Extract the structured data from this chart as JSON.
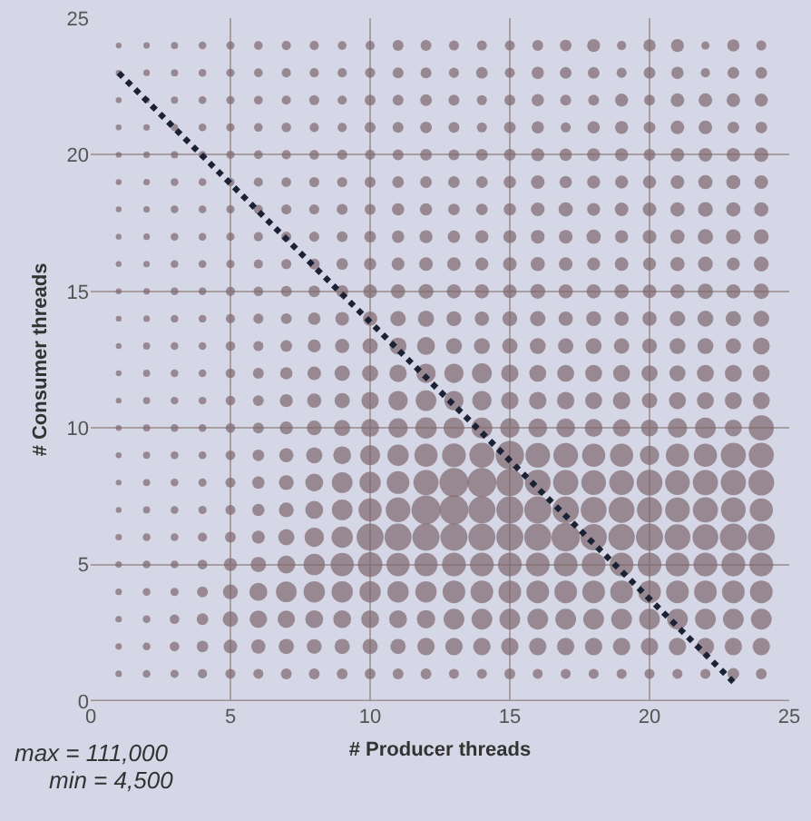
{
  "chart_data": {
    "type": "bubble",
    "xlabel": "# Producer threads",
    "ylabel": "# Consumer threads",
    "xlim": [
      0,
      25
    ],
    "ylim": [
      0,
      25
    ],
    "xticks": [
      0,
      5,
      10,
      15,
      20,
      25
    ],
    "yticks": [
      0,
      5,
      10,
      15,
      20,
      25
    ],
    "grid": true,
    "annotations": [
      "max = 111,000",
      "min = 4,500"
    ],
    "series": [
      {
        "color": "#7d666c",
        "x": [
          1,
          2,
          3,
          4,
          5,
          6,
          7,
          8,
          9,
          10,
          11,
          12,
          13,
          14,
          15,
          16,
          17,
          18,
          19,
          20,
          21,
          22,
          23,
          24
        ],
        "values": [
          1,
          1,
          1,
          1,
          1,
          1,
          1,
          1,
          1,
          1,
          1,
          1,
          1,
          1,
          1,
          1,
          1,
          1,
          1,
          1,
          1,
          1,
          1,
          1
        ],
        "sizes": [
          0.05,
          0.07,
          0.08,
          0.1,
          0.12,
          0.12,
          0.14,
          0.14,
          0.14,
          0.14,
          0.14,
          0.14,
          0.12,
          0.12,
          0.14,
          0.12,
          0.12,
          0.12,
          0.12,
          0.12,
          0.12,
          0.12,
          0.16,
          0.14
        ]
      },
      {
        "color": "#7d666c",
        "x": [
          1,
          2,
          3,
          4,
          5,
          6,
          7,
          8,
          9,
          10,
          11,
          12,
          13,
          14,
          15,
          16,
          17,
          18,
          19,
          20,
          21,
          22,
          23,
          24
        ],
        "values": [
          2,
          2,
          2,
          2,
          2,
          2,
          2,
          2,
          2,
          2,
          2,
          2,
          2,
          2,
          2,
          2,
          2,
          2,
          2,
          2,
          2,
          2,
          2,
          2
        ],
        "sizes": [
          0.05,
          0.07,
          0.11,
          0.16,
          0.22,
          0.24,
          0.28,
          0.26,
          0.28,
          0.28,
          0.28,
          0.36,
          0.36,
          0.36,
          0.36,
          0.36,
          0.36,
          0.36,
          0.36,
          0.36,
          0.36,
          0.36,
          0.36,
          0.36
        ]
      },
      {
        "color": "#7d666c",
        "x": [
          1,
          2,
          3,
          4,
          5,
          6,
          7,
          8,
          9,
          10,
          11,
          12,
          13,
          14,
          15,
          16,
          17,
          18,
          19,
          20,
          21,
          22,
          23,
          24
        ],
        "values": [
          3,
          3,
          3,
          3,
          3,
          3,
          3,
          3,
          3,
          3,
          3,
          3,
          3,
          3,
          3,
          3,
          3,
          3,
          3,
          3,
          3,
          3,
          3,
          3
        ],
        "sizes": [
          0.05,
          0.07,
          0.11,
          0.16,
          0.28,
          0.36,
          0.36,
          0.38,
          0.38,
          0.38,
          0.38,
          0.4,
          0.51,
          0.51,
          0.51,
          0.51,
          0.51,
          0.51,
          0.51,
          0.51,
          0.51,
          0.51,
          0.51,
          0.51
        ]
      },
      {
        "color": "#7d666c",
        "x": [
          1,
          2,
          3,
          4,
          5,
          6,
          7,
          8,
          9,
          10,
          11,
          12,
          13,
          14,
          15,
          16,
          17,
          18,
          19,
          20,
          21,
          22,
          23,
          24
        ],
        "values": [
          4,
          4,
          4,
          4,
          4,
          4,
          4,
          4,
          4,
          4,
          4,
          4,
          4,
          4,
          4,
          4,
          4,
          4,
          4,
          4,
          4,
          4,
          4,
          4
        ],
        "sizes": [
          0.05,
          0.07,
          0.08,
          0.14,
          0.26,
          0.38,
          0.51,
          0.54,
          0.54,
          0.54,
          0.54,
          0.54,
          0.61,
          0.61,
          0.61,
          0.61,
          0.61,
          0.61,
          0.61,
          0.61,
          0.61,
          0.61,
          0.61,
          0.61
        ]
      },
      {
        "color": "#7d666c",
        "x": [
          1,
          2,
          3,
          4,
          5,
          6,
          7,
          8,
          9,
          10,
          11,
          12,
          13,
          14,
          15,
          16,
          17,
          18,
          19,
          20,
          21,
          22,
          23,
          24
        ],
        "values": [
          5,
          5,
          5,
          5,
          5,
          5,
          5,
          5,
          5,
          5,
          5,
          5,
          5,
          5,
          5,
          5,
          5,
          5,
          5,
          5,
          5,
          5,
          5,
          5
        ],
        "sizes": [
          0.05,
          0.07,
          0.07,
          0.11,
          0.2,
          0.28,
          0.38,
          0.54,
          0.64,
          0.72,
          0.64,
          0.64,
          0.67,
          0.67,
          0.67,
          0.67,
          0.67,
          0.67,
          0.67,
          0.67,
          0.67,
          0.67,
          0.67,
          0.67
        ]
      },
      {
        "color": "#7d666c",
        "x": [
          1,
          2,
          3,
          4,
          5,
          6,
          7,
          8,
          9,
          10,
          11,
          12,
          13,
          14,
          15,
          16,
          17,
          18,
          19,
          20,
          21,
          22,
          23,
          24
        ],
        "values": [
          6,
          6,
          6,
          6,
          6,
          6,
          6,
          6,
          6,
          6,
          6,
          6,
          6,
          6,
          6,
          6,
          6,
          6,
          6,
          6,
          6,
          6,
          6,
          6
        ],
        "sizes": [
          0.05,
          0.07,
          0.07,
          0.1,
          0.14,
          0.2,
          0.31,
          0.44,
          0.54,
          0.87,
          0.87,
          0.87,
          0.87,
          0.87,
          0.87,
          0.87,
          0.96,
          0.83,
          0.83,
          0.87,
          0.79,
          0.79,
          0.87,
          0.87
        ]
      },
      {
        "color": "#7d666c",
        "x": [
          1,
          2,
          3,
          4,
          5,
          6,
          7,
          8,
          9,
          10,
          11,
          12,
          13,
          14,
          15,
          16,
          17,
          18,
          19,
          20,
          21,
          22,
          23,
          24
        ],
        "values": [
          7,
          7,
          7,
          7,
          7,
          7,
          7,
          7,
          7,
          7,
          7,
          7,
          7,
          7,
          7,
          7,
          7,
          7,
          7,
          7,
          7,
          7,
          7,
          7
        ],
        "sizes": [
          0.04,
          0.06,
          0.07,
          0.08,
          0.12,
          0.18,
          0.26,
          0.38,
          0.51,
          0.64,
          0.72,
          1.0,
          1.0,
          0.87,
          0.87,
          0.87,
          0.83,
          0.79,
          0.79,
          0.75,
          0.72,
          0.75,
          0.72,
          0.64
        ]
      },
      {
        "color": "#7d666c",
        "x": [
          1,
          2,
          3,
          4,
          5,
          6,
          7,
          8,
          9,
          10,
          11,
          12,
          13,
          14,
          15,
          16,
          17,
          18,
          19,
          20,
          21,
          22,
          23,
          24
        ],
        "values": [
          8,
          8,
          8,
          8,
          8,
          8,
          8,
          8,
          8,
          8,
          8,
          8,
          8,
          8,
          8,
          8,
          8,
          8,
          8,
          8,
          8,
          8,
          8,
          8
        ],
        "sizes": [
          0.04,
          0.06,
          0.07,
          0.08,
          0.12,
          0.18,
          0.26,
          0.38,
          0.51,
          0.54,
          0.61,
          0.75,
          1.0,
          1.0,
          0.87,
          0.79,
          0.75,
          0.72,
          0.72,
          0.79,
          0.72,
          0.75,
          0.75,
          0.79
        ]
      },
      {
        "color": "#7d666c",
        "x": [
          1,
          2,
          3,
          4,
          5,
          6,
          7,
          8,
          9,
          10,
          11,
          12,
          13,
          14,
          15,
          16,
          17,
          18,
          19,
          20,
          21,
          22,
          23,
          24
        ],
        "values": [
          9,
          9,
          9,
          9,
          9,
          9,
          9,
          9,
          9,
          9,
          9,
          9,
          9,
          9,
          9,
          9,
          9,
          9,
          9,
          9,
          9,
          9,
          9,
          9
        ],
        "sizes": [
          0.04,
          0.06,
          0.07,
          0.07,
          0.11,
          0.16,
          0.24,
          0.31,
          0.38,
          0.47,
          0.54,
          0.64,
          0.67,
          0.75,
          0.96,
          0.72,
          0.72,
          0.64,
          0.64,
          0.44,
          0.64,
          0.64,
          0.75,
          0.75
        ]
      },
      {
        "color": "#7d666c",
        "x": [
          1,
          2,
          3,
          4,
          5,
          6,
          7,
          8,
          9,
          10,
          11,
          12,
          13,
          14,
          15,
          16,
          17,
          18,
          19,
          20,
          21,
          22,
          23,
          24
        ],
        "values": [
          10,
          10,
          10,
          10,
          10,
          10,
          10,
          10,
          10,
          10,
          10,
          10,
          10,
          10,
          10,
          10,
          10,
          10,
          10,
          10,
          10,
          10,
          10,
          10
        ],
        "sizes": [
          0.04,
          0.06,
          0.07,
          0.07,
          0.11,
          0.14,
          0.2,
          0.26,
          0.31,
          0.38,
          0.44,
          0.54,
          0.51,
          0.51,
          0.44,
          0.42,
          0.42,
          0.38,
          0.36,
          0.34,
          0.44,
          0.51,
          0.34,
          0.75
        ]
      },
      {
        "color": "#7d666c",
        "x": [
          1,
          2,
          3,
          4,
          5,
          6,
          7,
          8,
          9,
          10,
          11,
          12,
          13,
          14,
          15,
          16,
          17,
          18,
          19,
          20,
          21,
          22,
          23,
          24
        ],
        "values": [
          11,
          11,
          11,
          11,
          11,
          11,
          11,
          11,
          11,
          11,
          11,
          11,
          11,
          11,
          11,
          11,
          11,
          11,
          11,
          11,
          11,
          11,
          11,
          11
        ],
        "sizes": [
          0.04,
          0.06,
          0.07,
          0.07,
          0.11,
          0.14,
          0.2,
          0.24,
          0.28,
          0.36,
          0.44,
          0.51,
          0.44,
          0.44,
          0.36,
          0.36,
          0.36,
          0.34,
          0.36,
          0.28,
          0.34,
          0.34,
          0.34,
          0.34
        ]
      },
      {
        "color": "#7d666c",
        "x": [
          1,
          2,
          3,
          4,
          5,
          6,
          7,
          8,
          9,
          10,
          11,
          12,
          13,
          14,
          15,
          16,
          17,
          18,
          19,
          20,
          21,
          22,
          23,
          24
        ],
        "values": [
          12,
          12,
          12,
          12,
          12,
          12,
          12,
          12,
          12,
          12,
          12,
          12,
          12,
          12,
          12,
          12,
          12,
          12,
          12,
          12,
          12,
          12,
          12,
          12
        ],
        "sizes": [
          0.04,
          0.06,
          0.07,
          0.07,
          0.11,
          0.14,
          0.18,
          0.22,
          0.28,
          0.31,
          0.36,
          0.44,
          0.44,
          0.47,
          0.36,
          0.34,
          0.34,
          0.34,
          0.34,
          0.31,
          0.31,
          0.34,
          0.34,
          0.34
        ]
      },
      {
        "color": "#7d666c",
        "x": [
          1,
          2,
          3,
          4,
          5,
          6,
          7,
          8,
          9,
          10,
          11,
          12,
          13,
          14,
          15,
          16,
          17,
          18,
          19,
          20,
          21,
          22,
          23,
          24
        ],
        "values": [
          13,
          13,
          13,
          13,
          13,
          13,
          13,
          13,
          13,
          13,
          13,
          13,
          13,
          13,
          13,
          13,
          13,
          13,
          13,
          13,
          13,
          13,
          13,
          13
        ],
        "sizes": [
          0.04,
          0.06,
          0.07,
          0.07,
          0.11,
          0.12,
          0.16,
          0.2,
          0.24,
          0.28,
          0.34,
          0.38,
          0.3,
          0.3,
          0.28,
          0.3,
          0.28,
          0.3,
          0.28,
          0.26,
          0.3,
          0.3,
          0.28,
          0.34
        ]
      },
      {
        "color": "#7d666c",
        "x": [
          1,
          2,
          3,
          4,
          5,
          6,
          7,
          8,
          9,
          10,
          11,
          12,
          13,
          14,
          15,
          16,
          17,
          18,
          19,
          20,
          21,
          22,
          23,
          24
        ],
        "values": [
          14,
          14,
          14,
          14,
          14,
          14,
          14,
          14,
          14,
          14,
          14,
          14,
          14,
          14,
          14,
          14,
          14,
          14,
          14,
          14,
          14,
          14,
          14,
          14
        ],
        "sizes": [
          0.04,
          0.05,
          0.07,
          0.07,
          0.1,
          0.12,
          0.14,
          0.18,
          0.22,
          0.24,
          0.28,
          0.31,
          0.26,
          0.24,
          0.26,
          0.28,
          0.24,
          0.26,
          0.24,
          0.24,
          0.28,
          0.3,
          0.28,
          0.3
        ]
      },
      {
        "color": "#7d666c",
        "x": [
          1,
          2,
          3,
          4,
          5,
          6,
          7,
          8,
          9,
          10,
          11,
          12,
          13,
          14,
          15,
          16,
          17,
          18,
          19,
          20,
          21,
          22,
          23,
          24
        ],
        "values": [
          15,
          15,
          15,
          15,
          15,
          15,
          15,
          15,
          15,
          15,
          15,
          15,
          15,
          15,
          15,
          15,
          15,
          15,
          15,
          15,
          15,
          15,
          15,
          15
        ],
        "sizes": [
          0.04,
          0.05,
          0.07,
          0.07,
          0.1,
          0.11,
          0.14,
          0.16,
          0.18,
          0.22,
          0.24,
          0.26,
          0.24,
          0.24,
          0.22,
          0.26,
          0.24,
          0.24,
          0.24,
          0.22,
          0.24,
          0.28,
          0.24,
          0.28
        ]
      },
      {
        "color": "#7d666c",
        "x": [
          1,
          2,
          3,
          4,
          5,
          6,
          7,
          8,
          9,
          10,
          11,
          12,
          13,
          14,
          15,
          16,
          17,
          18,
          19,
          20,
          21,
          22,
          23,
          24
        ],
        "values": [
          16,
          16,
          16,
          16,
          16,
          16,
          16,
          16,
          16,
          16,
          16,
          16,
          16,
          16,
          16,
          16,
          16,
          16,
          16,
          16,
          16,
          16,
          16,
          16
        ],
        "sizes": [
          0.04,
          0.05,
          0.07,
          0.07,
          0.08,
          0.1,
          0.12,
          0.14,
          0.16,
          0.18,
          0.2,
          0.22,
          0.22,
          0.2,
          0.22,
          0.24,
          0.22,
          0.2,
          0.22,
          0.2,
          0.24,
          0.26,
          0.2,
          0.26
        ]
      },
      {
        "color": "#7d666c",
        "x": [
          1,
          2,
          3,
          4,
          5,
          6,
          7,
          8,
          9,
          10,
          11,
          12,
          13,
          14,
          15,
          16,
          17,
          18,
          19,
          20,
          21,
          22,
          23,
          24
        ],
        "values": [
          17,
          17,
          17,
          17,
          17,
          17,
          17,
          17,
          17,
          17,
          17,
          17,
          17,
          17,
          17,
          17,
          17,
          17,
          17,
          17,
          17,
          17,
          17,
          17
        ],
        "sizes": [
          0.04,
          0.05,
          0.07,
          0.07,
          0.08,
          0.1,
          0.12,
          0.12,
          0.14,
          0.16,
          0.18,
          0.2,
          0.18,
          0.2,
          0.2,
          0.22,
          0.22,
          0.24,
          0.2,
          0.22,
          0.24,
          0.28,
          0.26,
          0.26
        ]
      },
      {
        "color": "#7d666c",
        "x": [
          1,
          2,
          3,
          4,
          5,
          6,
          7,
          8,
          9,
          10,
          11,
          12,
          13,
          14,
          15,
          16,
          17,
          18,
          19,
          20,
          21,
          22,
          23,
          24
        ],
        "values": [
          18,
          18,
          18,
          18,
          18,
          18,
          18,
          18,
          18,
          18,
          18,
          18,
          18,
          18,
          18,
          18,
          18,
          18,
          18,
          18,
          18,
          18,
          18,
          18
        ],
        "sizes": [
          0.04,
          0.05,
          0.07,
          0.07,
          0.08,
          0.1,
          0.12,
          0.12,
          0.14,
          0.14,
          0.18,
          0.18,
          0.16,
          0.16,
          0.18,
          0.22,
          0.24,
          0.2,
          0.22,
          0.22,
          0.24,
          0.26,
          0.24,
          0.24
        ]
      },
      {
        "color": "#7d666c",
        "x": [
          1,
          2,
          3,
          4,
          5,
          6,
          7,
          8,
          9,
          10,
          11,
          12,
          13,
          14,
          15,
          16,
          17,
          18,
          19,
          20,
          21,
          22,
          23,
          24
        ],
        "values": [
          19,
          19,
          19,
          19,
          19,
          19,
          19,
          19,
          19,
          19,
          19,
          19,
          19,
          19,
          19,
          19,
          19,
          19,
          19,
          19,
          19,
          19,
          19,
          19
        ],
        "sizes": [
          0.04,
          0.05,
          0.07,
          0.07,
          0.08,
          0.1,
          0.11,
          0.12,
          0.12,
          0.14,
          0.16,
          0.16,
          0.16,
          0.16,
          0.18,
          0.22,
          0.18,
          0.2,
          0.2,
          0.2,
          0.22,
          0.24,
          0.24,
          0.22
        ]
      },
      {
        "color": "#7d666c",
        "x": [
          1,
          2,
          3,
          4,
          5,
          6,
          7,
          8,
          9,
          10,
          11,
          12,
          13,
          14,
          15,
          16,
          17,
          18,
          19,
          20,
          21,
          22,
          23,
          24
        ],
        "values": [
          20,
          20,
          20,
          20,
          20,
          20,
          20,
          20,
          20,
          20,
          20,
          20,
          20,
          20,
          20,
          20,
          20,
          20,
          20,
          20,
          20,
          20,
          20,
          20
        ],
        "sizes": [
          0.04,
          0.05,
          0.06,
          0.07,
          0.08,
          0.09,
          0.1,
          0.11,
          0.12,
          0.12,
          0.14,
          0.16,
          0.14,
          0.16,
          0.16,
          0.2,
          0.18,
          0.2,
          0.2,
          0.16,
          0.22,
          0.22,
          0.22,
          0.24
        ]
      },
      {
        "color": "#7d666c",
        "x": [
          1,
          2,
          3,
          4,
          5,
          6,
          7,
          8,
          9,
          10,
          11,
          12,
          13,
          14,
          15,
          16,
          17,
          18,
          19,
          20,
          21,
          22,
          23,
          24
        ],
        "values": [
          21,
          21,
          21,
          21,
          21,
          21,
          21,
          21,
          21,
          21,
          21,
          21,
          21,
          21,
          21,
          21,
          21,
          21,
          21,
          21,
          21,
          21,
          21,
          21
        ],
        "sizes": [
          0.04,
          0.05,
          0.06,
          0.07,
          0.08,
          0.09,
          0.11,
          0.1,
          0.1,
          0.14,
          0.14,
          0.16,
          0.14,
          0.12,
          0.16,
          0.18,
          0.12,
          0.18,
          0.2,
          0.16,
          0.22,
          0.22,
          0.16,
          0.16
        ]
      },
      {
        "color": "#7d666c",
        "x": [
          1,
          2,
          3,
          4,
          5,
          6,
          7,
          8,
          9,
          10,
          11,
          12,
          13,
          14,
          15,
          16,
          17,
          18,
          19,
          20,
          21,
          22,
          23,
          24
        ],
        "values": [
          22,
          22,
          22,
          22,
          22,
          22,
          22,
          22,
          22,
          22,
          22,
          22,
          22,
          22,
          22,
          22,
          22,
          22,
          22,
          22,
          22,
          22,
          22,
          22
        ],
        "sizes": [
          0.04,
          0.05,
          0.06,
          0.07,
          0.08,
          0.09,
          0.1,
          0.12,
          0.1,
          0.14,
          0.14,
          0.16,
          0.14,
          0.12,
          0.14,
          0.18,
          0.14,
          0.14,
          0.2,
          0.14,
          0.22,
          0.22,
          0.22,
          0.2
        ]
      },
      {
        "color": "#7d666c",
        "x": [
          1,
          2,
          3,
          4,
          5,
          6,
          7,
          8,
          9,
          10,
          11,
          12,
          13,
          14,
          15,
          16,
          17,
          18,
          19,
          20,
          21,
          22,
          23,
          24
        ],
        "values": [
          23,
          23,
          23,
          23,
          23,
          23,
          23,
          23,
          23,
          23,
          23,
          23,
          23,
          23,
          23,
          23,
          23,
          23,
          23,
          23,
          23,
          23,
          23,
          23
        ],
        "sizes": [
          0.04,
          0.05,
          0.06,
          0.07,
          0.08,
          0.09,
          0.1,
          0.1,
          0.1,
          0.12,
          0.14,
          0.14,
          0.12,
          0.16,
          0.12,
          0.18,
          0.16,
          0.16,
          0.12,
          0.16,
          0.18,
          0.1,
          0.16,
          0.16
        ]
      },
      {
        "color": "#7d666c",
        "x": [
          1,
          2,
          3,
          4,
          5,
          6,
          7,
          8,
          9,
          10,
          11,
          12,
          13,
          14,
          15,
          16,
          17,
          18,
          19,
          20,
          21,
          22,
          23,
          24
        ],
        "values": [
          24,
          24,
          24,
          24,
          24,
          24,
          24,
          24,
          24,
          24,
          24,
          24,
          24,
          24,
          24,
          24,
          24,
          24,
          24,
          24,
          24,
          24,
          24,
          24
        ],
        "sizes": [
          0.04,
          0.05,
          0.06,
          0.07,
          0.08,
          0.09,
          0.1,
          0.1,
          0.09,
          0.1,
          0.14,
          0.14,
          0.12,
          0.12,
          0.12,
          0.14,
          0.16,
          0.2,
          0.1,
          0.18,
          0.2,
          0.08,
          0.18,
          0.12
        ]
      },
      {
        "type": "line",
        "color": "#1c2236",
        "line_style": "dotted",
        "x": [
          1,
          23
        ],
        "values": [
          23,
          0.7
        ]
      }
    ]
  }
}
